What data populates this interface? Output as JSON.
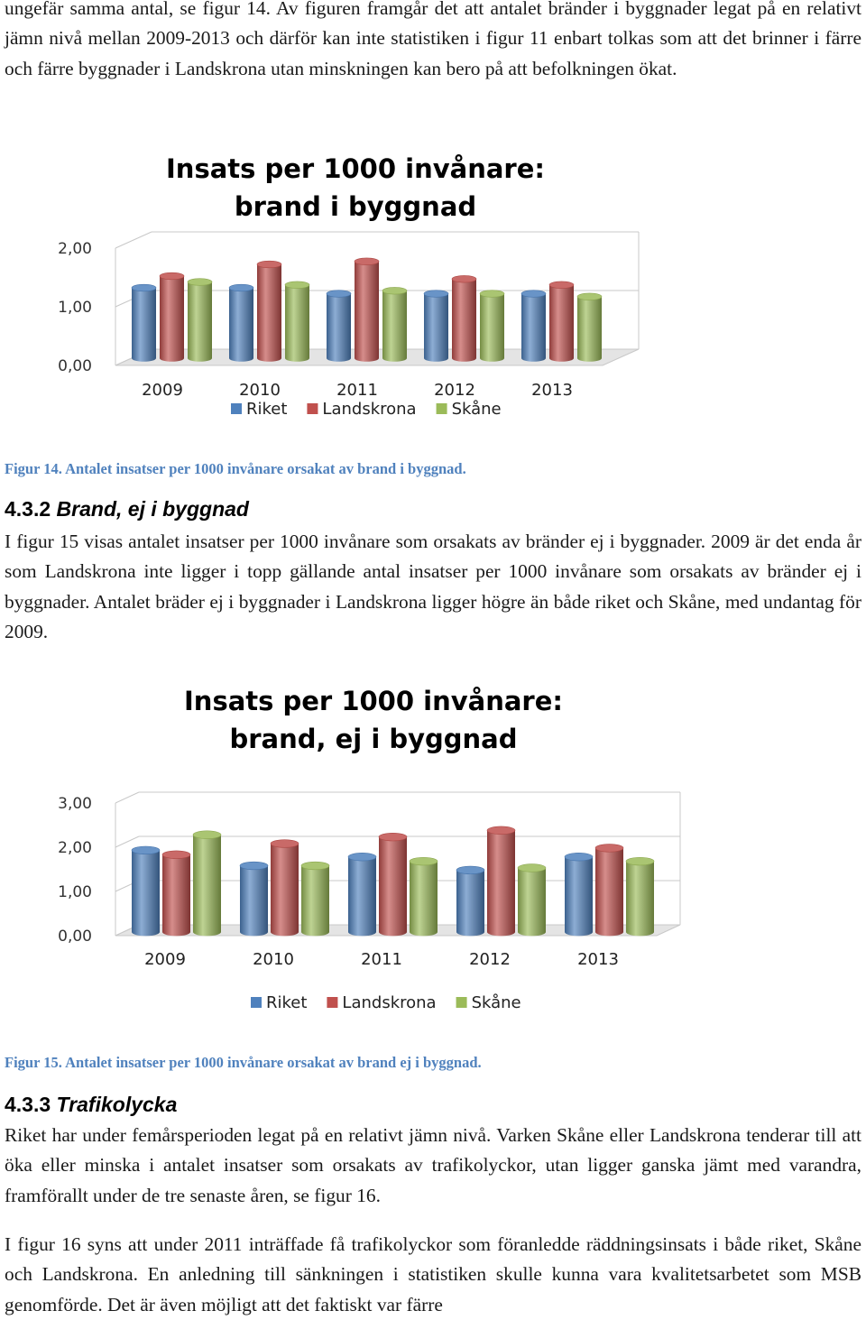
{
  "intro_paragraph": "ungefär samma antal, se figur 14. Av figuren framgår det att antalet bränder i byggnader legat på en relativt jämn nivå mellan 2009-2013 och därför kan inte statistiken i figur 11 enbart tolkas som att det brinner i färre och färre byggnader i Landskrona utan minskningen kan bero på att befolkningen ökat.",
  "figure14": {
    "caption": "Figur 14. Antalet insatser per 1000 invånare orsakat av brand i byggnad."
  },
  "section_432": {
    "number": "4.3.2",
    "title": "Brand, ej i byggnad",
    "paragraph": "I figur 15 visas antalet insatser per 1000 invånare som orsakats av bränder ej i byggnader. 2009 är det enda år som Landskrona inte ligger i topp gällande antal insatser per 1000 invånare som orsakats av bränder ej i byggnader. Antalet bräder ej i byggnader i Landskrona ligger högre än både riket och Skåne, med undantag för 2009."
  },
  "figure15": {
    "caption": "Figur 15. Antalet insatser per 1000 invånare orsakat av brand ej i byggnad."
  },
  "section_433": {
    "number": "4.3.3",
    "title": "Trafikolycka",
    "paragraph1": "Riket har under femårsperioden legat på en relativt jämn nivå. Varken Skåne eller Landskrona tenderar till att öka eller minska i antalet insatser som orsakats av trafikolyckor, utan ligger ganska jämt med varandra, framförallt under de tre senaste åren, se figur 16.",
    "paragraph2": "I figur 16 syns att under 2011 inträffade få trafikolyckor som föranledde räddningsinsats i både riket, Skåne och Landskrona. En anledning till sänkningen i statistiken skulle kunna vara kvalitetsarbetet som MSB genomförde. Det är även möjligt att det faktiskt var färre"
  },
  "colors": {
    "riket": "#4f81bd",
    "landskrona": "#c0504d",
    "skane": "#9bbb59"
  },
  "chart_data": [
    {
      "type": "bar",
      "title": "Insats per 1000 invånare:",
      "subtitle": "brand i byggnad",
      "categories": [
        "2009",
        "2010",
        "2011",
        "2012",
        "2013"
      ],
      "ytick_labels": [
        "0,00",
        "1,00",
        "2,00"
      ],
      "ylim": [
        0,
        2
      ],
      "grid": true,
      "legend_position": "bottom",
      "series": [
        {
          "name": "Riket",
          "values": [
            1.2,
            1.2,
            1.1,
            1.1,
            1.1
          ]
        },
        {
          "name": "Landskrona",
          "values": [
            1.4,
            1.6,
            1.65,
            1.35,
            1.25
          ]
        },
        {
          "name": "Skåne",
          "values": [
            1.3,
            1.25,
            1.15,
            1.1,
            1.05
          ]
        }
      ]
    },
    {
      "type": "bar",
      "title": "Insats per 1000 invånare:",
      "subtitle": "brand, ej i byggnad",
      "categories": [
        "2009",
        "2010",
        "2011",
        "2012",
        "2013"
      ],
      "ytick_labels": [
        "0,00",
        "1,00",
        "2,00",
        "3,00"
      ],
      "ylim": [
        0,
        3
      ],
      "grid": true,
      "legend_position": "bottom",
      "series": [
        {
          "name": "Riket",
          "values": [
            1.85,
            1.5,
            1.7,
            1.4,
            1.7
          ]
        },
        {
          "name": "Landskrona",
          "values": [
            1.75,
            2.0,
            2.15,
            2.3,
            1.9
          ]
        },
        {
          "name": "Skåne",
          "values": [
            2.2,
            1.5,
            1.6,
            1.45,
            1.6
          ]
        }
      ]
    }
  ]
}
